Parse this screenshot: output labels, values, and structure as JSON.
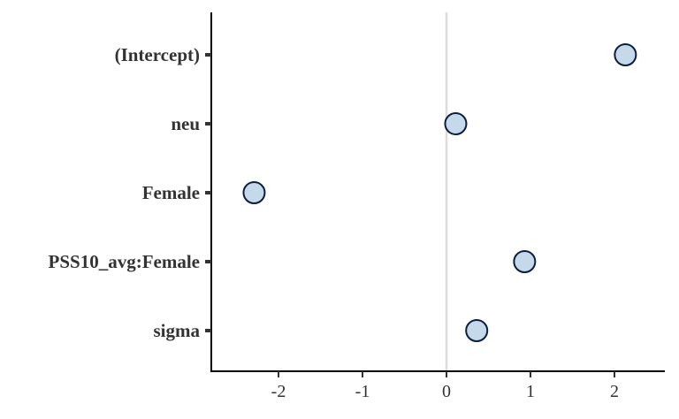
{
  "chart_data": {
    "type": "scatter",
    "title": "",
    "xlabel": "",
    "ylabel": "",
    "categories": [
      "(Intercept)",
      "neu",
      "Female",
      "PSS10_avg:Female",
      "sigma"
    ],
    "values": [
      2.13,
      0.11,
      -2.29,
      0.93,
      0.36
    ],
    "xlim": [
      -2.8,
      2.6
    ],
    "xticks": [
      -2,
      -1,
      0,
      1,
      2
    ],
    "xtick_labels": [
      "-2",
      "-1",
      "0",
      "1",
      "2"
    ],
    "reference_line_x": 0,
    "grid": false,
    "legend": "none",
    "colors": {
      "point_fill": "#c6d9ea",
      "point_stroke": "#0b1f3f",
      "axis": "#000000",
      "reference_line": "#dcdcdc",
      "text": "#333333"
    }
  }
}
